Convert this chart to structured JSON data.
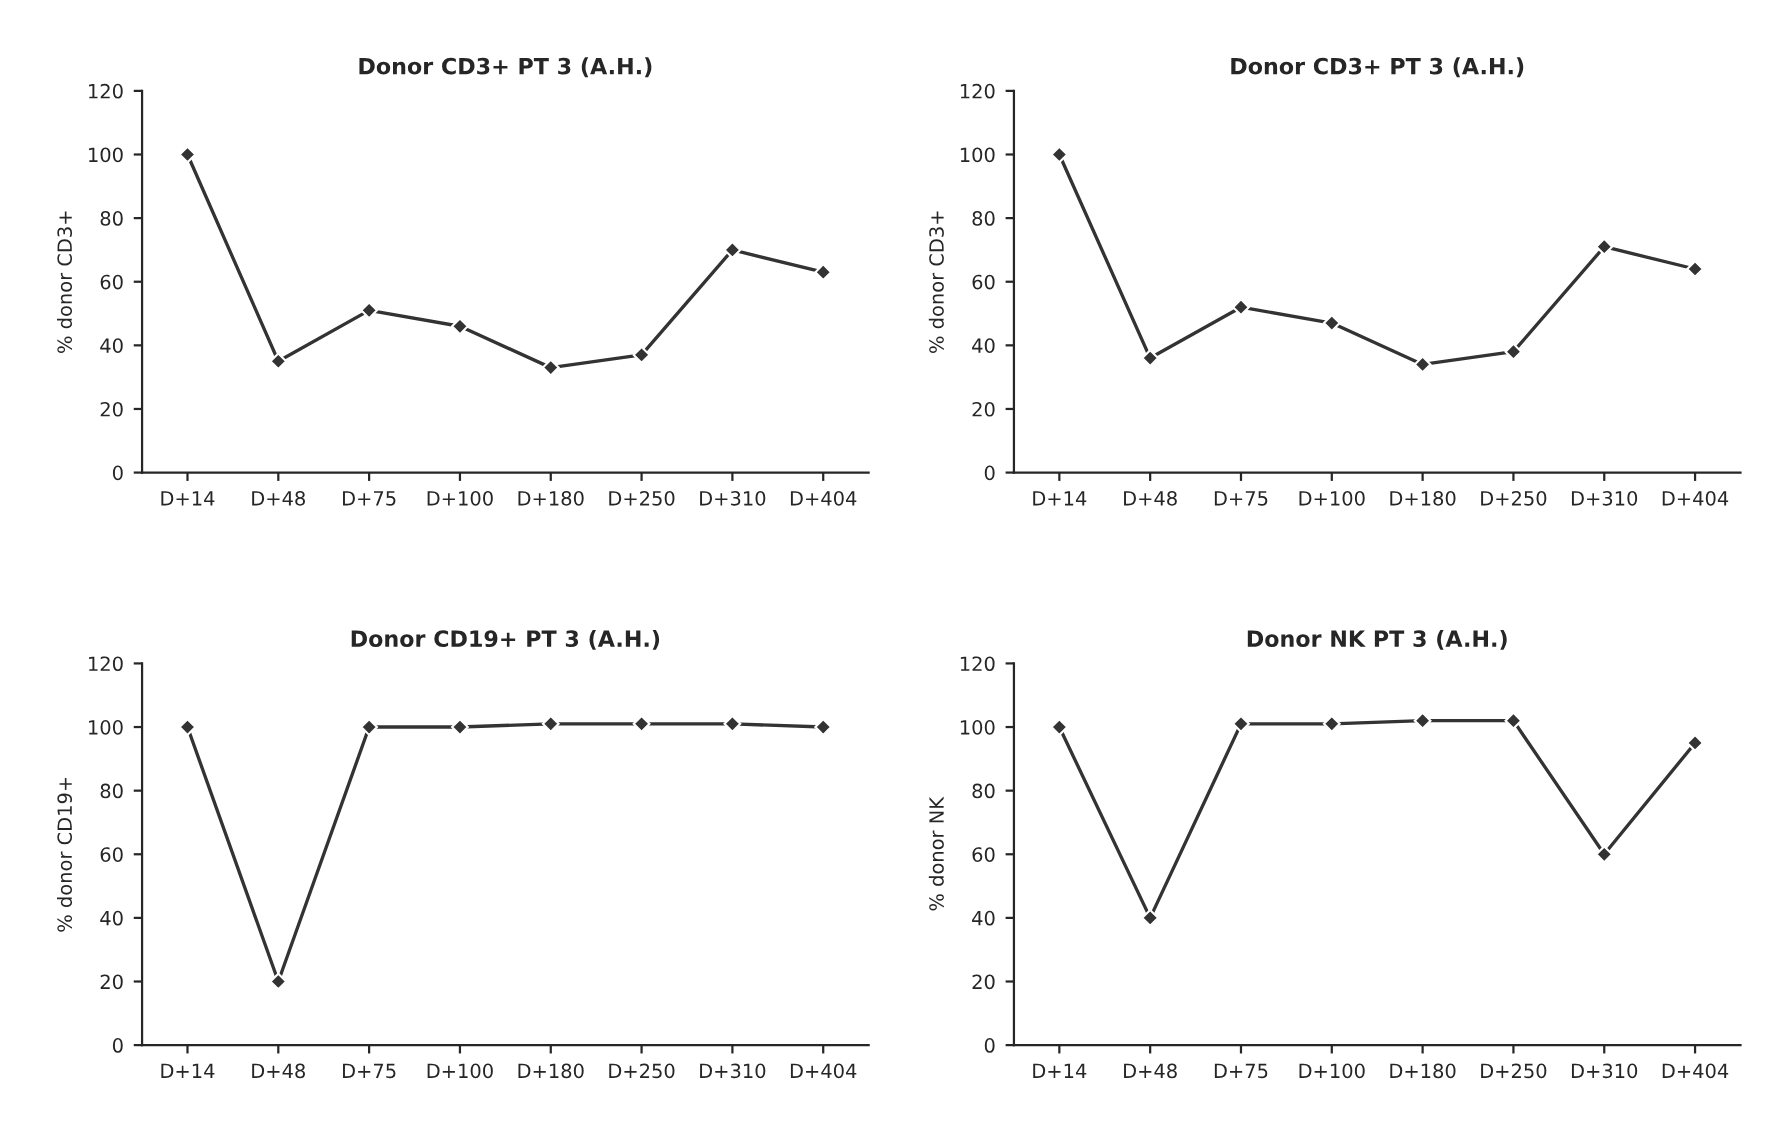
{
  "chart_data": [
    {
      "type": "line",
      "title": "Donor CD3+ PT 3 (A.H.)",
      "ylabel": "% donor CD3+",
      "categories": [
        "D+14",
        "D+48",
        "D+75",
        "D+100",
        "D+180",
        "D+250",
        "D+310",
        "D+404"
      ],
      "series": [
        {
          "color": "#333333",
          "values": [
            100,
            35,
            51,
            46,
            33,
            37,
            70,
            63
          ]
        }
      ],
      "ylim": [
        0,
        120
      ],
      "yticks": [
        0,
        20,
        40,
        60,
        80,
        100,
        120
      ],
      "marker": "diamond",
      "line_style": "solid",
      "grid": false
    },
    {
      "type": "line",
      "title": "Donor CD3+ PT 3 (A.H.)",
      "ylabel": "% donor CD3+",
      "categories": [
        "D+14",
        "D+48",
        "D+75",
        "D+100",
        "D+180",
        "D+250",
        "D+310",
        "D+404"
      ],
      "series": [
        {
          "color": "#333333",
          "values": [
            100,
            36,
            52,
            47,
            34,
            38,
            71,
            64
          ]
        }
      ],
      "ylim": [
        0,
        120
      ],
      "yticks": [
        0,
        20,
        40,
        60,
        80,
        100,
        120
      ],
      "marker": "diamond",
      "line_style": "solid",
      "grid": false
    },
    {
      "type": "line",
      "title": "Donor CD19+ PT 3 (A.H.)",
      "ylabel": "% donor CD19+",
      "categories": [
        "D+14",
        "D+48",
        "D+75",
        "D+100",
        "D+180",
        "D+250",
        "D+310",
        "D+404"
      ],
      "series": [
        {
          "color": "#333333",
          "values": [
            100,
            20,
            100,
            100,
            101,
            101,
            101,
            100
          ]
        }
      ],
      "ylim": [
        0,
        120
      ],
      "yticks": [
        0,
        20,
        40,
        60,
        80,
        100,
        120
      ],
      "marker": "diamond",
      "line_style": "solid",
      "grid": false
    },
    {
      "type": "line",
      "title": "Donor NK PT 3 (A.H.)",
      "ylabel": "% donor NK",
      "categories": [
        "D+14",
        "D+48",
        "D+75",
        "D+100",
        "D+180",
        "D+250",
        "D+310",
        "D+404"
      ],
      "series": [
        {
          "color": "#333333",
          "values": [
            100,
            40,
            101,
            101,
            102,
            102,
            60,
            95
          ]
        }
      ],
      "ylim": [
        0,
        120
      ],
      "yticks": [
        0,
        20,
        40,
        60,
        80,
        100,
        120
      ],
      "marker": "diamond",
      "line_style": "solid",
      "grid": false
    }
  ]
}
